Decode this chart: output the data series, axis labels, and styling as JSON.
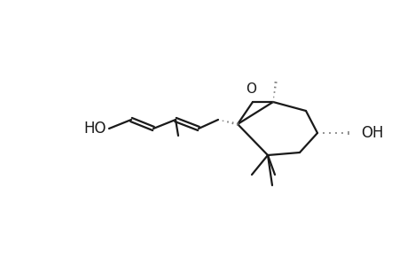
{
  "background": "#ffffff",
  "line_color": "#1a1a1a",
  "gray_color": "#808080",
  "bond_lw": 1.6,
  "figure_width": 4.6,
  "figure_height": 3.0,
  "dpi": 100,
  "xlim": [
    0,
    460
  ],
  "ylim": [
    0,
    300
  ]
}
